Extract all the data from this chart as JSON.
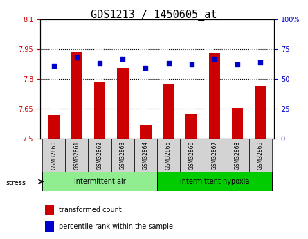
{
  "title": "GDS1213 / 1450605_at",
  "samples": [
    "GSM32860",
    "GSM32861",
    "GSM32862",
    "GSM32863",
    "GSM32864",
    "GSM32865",
    "GSM32866",
    "GSM32867",
    "GSM32868",
    "GSM32869"
  ],
  "transformed_counts": [
    7.62,
    7.935,
    7.785,
    7.855,
    7.57,
    7.775,
    7.625,
    7.93,
    7.655,
    7.765
  ],
  "percentile_ranks": [
    61,
    68,
    63,
    67,
    59,
    63,
    62,
    67,
    62,
    64
  ],
  "ylim_left": [
    7.5,
    8.1
  ],
  "ylim_right": [
    0,
    100
  ],
  "yticks_left": [
    7.5,
    7.65,
    7.8,
    7.95,
    8.1
  ],
  "ytick_labels_left": [
    "7.5",
    "7.65",
    "7.8",
    "7.95",
    "8.1"
  ],
  "yticks_right": [
    0,
    25,
    50,
    75,
    100
  ],
  "ytick_labels_right": [
    "0",
    "25",
    "50",
    "75",
    "100%"
  ],
  "groups": [
    {
      "label": "intermittent air",
      "indices": [
        0,
        1,
        2,
        3,
        4
      ],
      "color": "#90ee90"
    },
    {
      "label": "intermittent hypoxia",
      "indices": [
        5,
        6,
        7,
        8,
        9
      ],
      "color": "#00cc00"
    }
  ],
  "bar_color": "#cc0000",
  "dot_color": "#0000cc",
  "bar_bottom": 7.5,
  "bar_width": 0.5,
  "grid_color": "black",
  "grid_linewidth": 0.8,
  "tick_color_left": "#cc0000",
  "tick_color_right": "#0000cc",
  "title_fontsize": 11,
  "legend_fontsize": 7,
  "tick_label_fontsize": 7,
  "stress_label": "stress",
  "xlabel_area_color_light": "#90ee90",
  "xlabel_area_color_dark": "#00cc00",
  "xlabel_bg_color": "#d3d3d3"
}
